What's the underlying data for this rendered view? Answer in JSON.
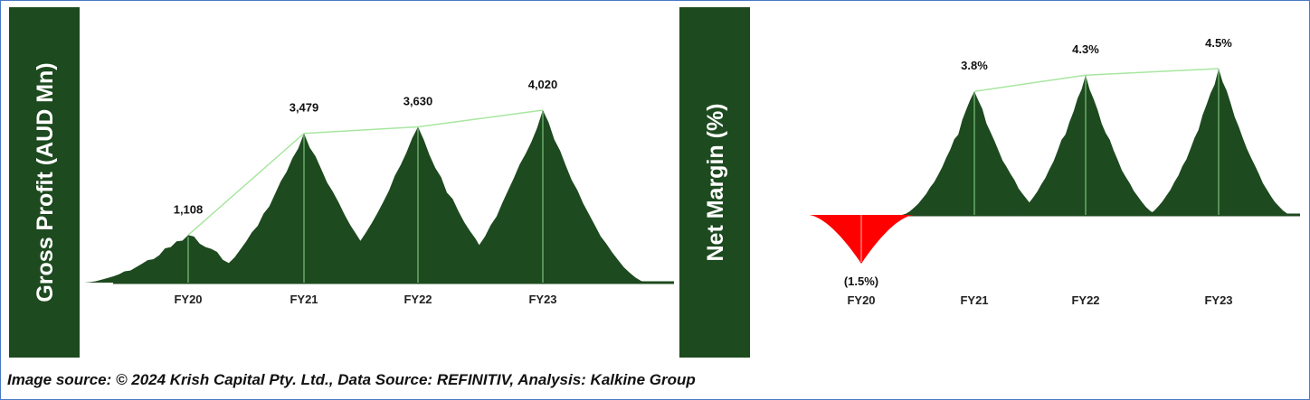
{
  "chart_data": [
    {
      "type": "mountain",
      "ylabel": "Gross Profit (AUD Mn)",
      "categories": [
        "FY20",
        "FY21",
        "FY22",
        "FY23"
      ],
      "values": [
        1108,
        3479,
        3630,
        4020
      ],
      "value_labels": [
        "1,108",
        "3,479",
        "3,630",
        "4,020"
      ],
      "color": "#1d4a1f",
      "negative_color": "#ff0000"
    },
    {
      "type": "mountain",
      "ylabel": "Net Margin (%)",
      "categories": [
        "FY20",
        "FY21",
        "FY22",
        "FY23"
      ],
      "values": [
        -1.5,
        3.8,
        4.3,
        4.5
      ],
      "value_labels": [
        "(1.5%)",
        "3.8%",
        "4.3%",
        "4.5%"
      ],
      "color": "#1d4a1f",
      "negative_color": "#ff0000"
    }
  ],
  "source": "Image source: © 2024 Krish Capital Pty. Ltd., Data Source: REFINITIV, Analysis: Kalkine Group"
}
